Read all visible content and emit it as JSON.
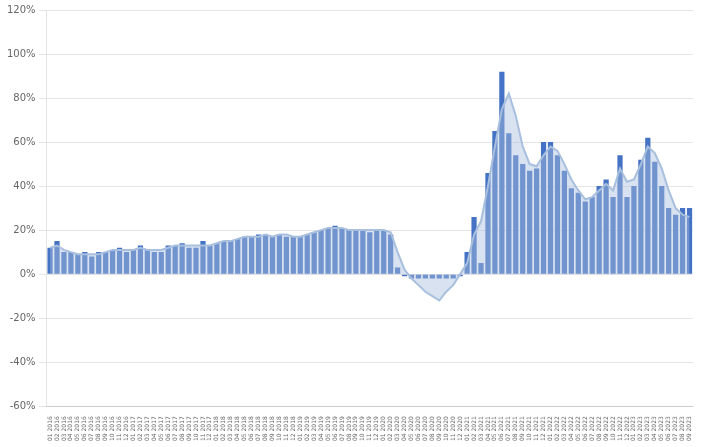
{
  "chart_data": {
    "type": "bar",
    "categories": [
      "01\n2016",
      "02\n2016",
      "03\n2016",
      "04\n2016",
      "05\n2016",
      "06\n2016",
      "07\n2016",
      "08\n2016",
      "09\n2016",
      "10\n2016",
      "11\n2016",
      "12\n2016",
      "01\n2017",
      "02\n2017",
      "03\n2017",
      "04\n2017",
      "05\n2017",
      "06\n2017",
      "07\n2017",
      "08\n2017",
      "09\n2017",
      "10\n2017",
      "11\n2017",
      "12\n2017",
      "01\n2018",
      "02\n2018",
      "03\n2018",
      "04\n2018",
      "05\n2018",
      "06\n2018",
      "07\n2018",
      "08\n2018",
      "09\n2018",
      "10\n2018",
      "11\n2018",
      "12\n2018",
      "01\n2019",
      "02\n2019",
      "03\n2019",
      "04\n2019",
      "05\n2019",
      "06\n2019",
      "07\n2019",
      "08\n2019",
      "09\n2019",
      "10\n2019",
      "11\n2019",
      "12\n2019",
      "01\n2020",
      "02\n2020",
      "03\n2020",
      "04\n2020",
      "05\n2020",
      "06\n2020",
      "07\n2020",
      "08\n2020",
      "09\n2020",
      "10\n2020",
      "11\n2020",
      "12\n2020",
      "01\n2021",
      "02\n2021",
      "03\n2021",
      "04\n2021",
      "05\n2021",
      "06\n2021",
      "07\n2021",
      "08\n2021",
      "09\n2021",
      "10\n2021",
      "11\n2021",
      "12\n2021",
      "01\n2022",
      "02\n2022",
      "03\n2022",
      "04\n2022",
      "05\n2022",
      "06\n2022",
      "07\n2022",
      "08\n2022",
      "09\n2022",
      "10\n2022",
      "11\n2022",
      "12\n2022",
      "01\n2023",
      "02\n2023",
      "03\n2023",
      "04\n2023",
      "05\n2023",
      "06\n2023",
      "07\n2023",
      "08\n2023",
      "09\n2023"
    ],
    "series": [
      {
        "type": "bar",
        "color": "#4472c4",
        "values": [
          12,
          15,
          10,
          10,
          9,
          10,
          8,
          10,
          10,
          11,
          12,
          10,
          11,
          13,
          11,
          10,
          10,
          13,
          13,
          14,
          12,
          12,
          15,
          13,
          14,
          15,
          15,
          16,
          17,
          17,
          18,
          18,
          17,
          18,
          17,
          17,
          17,
          18,
          19,
          20,
          21,
          22,
          21,
          20,
          20,
          20,
          19,
          20,
          20,
          18,
          3,
          -1,
          -2,
          -2,
          -2,
          -2,
          -2,
          -2,
          -2,
          -1,
          10,
          26,
          5,
          46,
          65,
          92,
          64,
          54,
          50,
          47,
          48,
          60,
          60,
          54,
          47,
          39,
          37,
          33,
          35,
          40,
          43,
          35,
          54,
          35,
          40,
          52,
          62,
          51,
          40,
          30,
          27,
          30,
          30
        ]
      },
      {
        "type": "area",
        "color": "#a8bfdd",
        "values": [
          12,
          13,
          11,
          10,
          9,
          9,
          9,
          9,
          10,
          11,
          11,
          11,
          11,
          12,
          11,
          11,
          11,
          12,
          13,
          13,
          13,
          13,
          13,
          13,
          14,
          15,
          15,
          16,
          17,
          17,
          17,
          18,
          17,
          18,
          18,
          17,
          17,
          18,
          19,
          20,
          21,
          21,
          21,
          20,
          20,
          20,
          20,
          20,
          20,
          19,
          10,
          2,
          -2,
          -5,
          -8,
          -10,
          -12,
          -8,
          -5,
          0,
          5,
          18,
          24,
          40,
          58,
          75,
          82,
          72,
          58,
          50,
          49,
          54,
          58,
          56,
          50,
          43,
          38,
          34,
          35,
          38,
          41,
          38,
          48,
          42,
          43,
          50,
          58,
          55,
          48,
          38,
          30,
          27,
          26
        ]
      }
    ],
    "ylim": [
      -60,
      120
    ],
    "yticks": [
      {
        "value": -60,
        "label": "-60%"
      },
      {
        "value": -40,
        "label": "-40%"
      },
      {
        "value": -20,
        "label": "-20%"
      },
      {
        "value": 0,
        "label": "0%"
      },
      {
        "value": 20,
        "label": "20%"
      },
      {
        "value": 40,
        "label": "40%"
      },
      {
        "value": 60,
        "label": "60%"
      },
      {
        "value": 80,
        "label": "80%"
      },
      {
        "value": 100,
        "label": "100%"
      },
      {
        "value": 120,
        "label": "120%"
      }
    ],
    "grid": true
  }
}
